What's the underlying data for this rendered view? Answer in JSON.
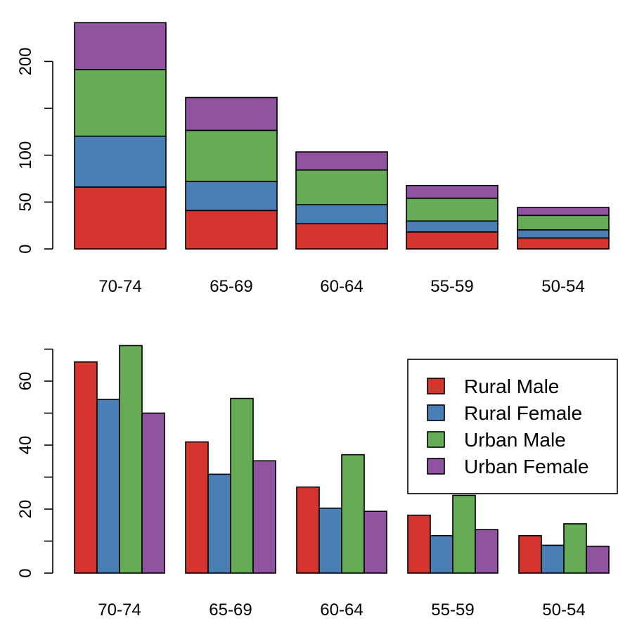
{
  "chart_data": [
    {
      "type": "bar",
      "stacked": true,
      "categories": [
        "70-74",
        "65-69",
        "60-64",
        "55-59",
        "50-54"
      ],
      "series": [
        {
          "name": "Rural Male",
          "values": [
            66.0,
            41.0,
            26.9,
            18.1,
            11.7
          ]
        },
        {
          "name": "Rural Female",
          "values": [
            54.3,
            30.9,
            20.3,
            11.7,
            8.7
          ]
        },
        {
          "name": "Urban Male",
          "values": [
            71.1,
            54.6,
            37.0,
            24.3,
            15.4
          ]
        },
        {
          "name": "Urban Female",
          "values": [
            50.0,
            35.1,
            19.3,
            13.6,
            8.4
          ]
        }
      ],
      "yticks": [
        0,
        50,
        100,
        200
      ],
      "yminor": [
        150
      ],
      "ylim": [
        0,
        250
      ],
      "grid": false,
      "legend": false
    },
    {
      "type": "bar",
      "stacked": false,
      "categories": [
        "70-74",
        "65-69",
        "60-64",
        "55-59",
        "50-54"
      ],
      "series": [
        {
          "name": "Rural Male",
          "values": [
            66.0,
            41.0,
            26.9,
            18.1,
            11.7
          ]
        },
        {
          "name": "Rural Female",
          "values": [
            54.3,
            30.9,
            20.3,
            11.7,
            8.7
          ]
        },
        {
          "name": "Urban Male",
          "values": [
            71.1,
            54.6,
            37.0,
            24.3,
            15.4
          ]
        },
        {
          "name": "Urban Female",
          "values": [
            50.0,
            35.1,
            19.3,
            13.6,
            8.4
          ]
        }
      ],
      "yticks": [
        0,
        20,
        40,
        60
      ],
      "yminor": [
        10,
        30,
        50,
        70
      ],
      "ylim": [
        0,
        72
      ],
      "grid": false,
      "legend": "top-right"
    }
  ],
  "colors": {
    "Rural Male": "#d4352e",
    "Rural Female": "#4a7fb6",
    "Urban Male": "#66ac56",
    "Urban Female": "#8f53a0"
  }
}
